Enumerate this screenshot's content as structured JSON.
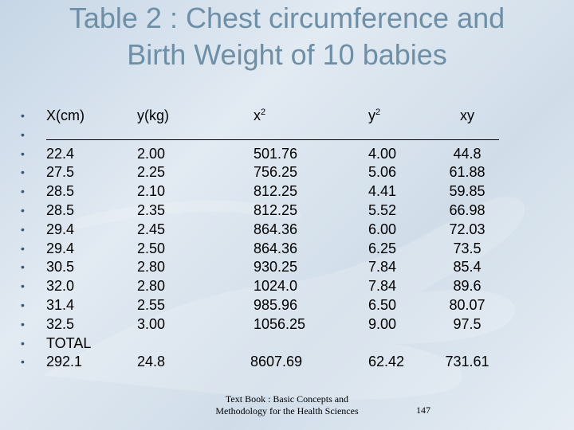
{
  "slide": {
    "title_line1": "Table 2 : Chest circumference and",
    "title_line2": "Birth Weight of 10 babies"
  },
  "table": {
    "headers": [
      {
        "base": "X(cm)",
        "sup": ""
      },
      {
        "base": "y(kg)",
        "sup": ""
      },
      {
        "base": "x",
        "sup": "2"
      },
      {
        "base": "y",
        "sup": "2"
      },
      {
        "base": "xy",
        "sup": ""
      }
    ],
    "rows": [
      [
        "22.4",
        "2.00",
        "501.76",
        "4.00",
        "44.8"
      ],
      [
        "27.5",
        "2.25",
        "756.25",
        "5.06",
        "61.88"
      ],
      [
        "28.5",
        "2.10",
        "812.25",
        "4.41",
        "59.85"
      ],
      [
        "28.5",
        "2.35",
        "812.25",
        "5.52",
        "66.98"
      ],
      [
        "29.4",
        "2.45",
        "864.36",
        "6.00",
        "72.03"
      ],
      [
        "29.4",
        "2.50",
        "864.36",
        "6.25",
        "73.5"
      ],
      [
        "30.5",
        "2.80",
        "930.25",
        "7.84",
        "85.4"
      ],
      [
        "32.0",
        "2.80",
        "1024.0",
        "7.84",
        "89.6"
      ],
      [
        "31.4",
        "2.55",
        "985.96",
        "6.50",
        "80.07"
      ],
      [
        "32.5",
        "3.00",
        "1056.25",
        "9.00",
        "97.5"
      ]
    ],
    "total_label": "TOTAL",
    "totals": [
      "292.1",
      "24.8",
      "8607.69",
      "62.42",
      "731.61"
    ]
  },
  "footer": {
    "line1": "Text Book : Basic Concepts and",
    "line2": "Methodology for the Health Sciences",
    "page_number": "147"
  },
  "colors": {
    "title": "#6e8fa6",
    "background": "#d4e0eb"
  }
}
